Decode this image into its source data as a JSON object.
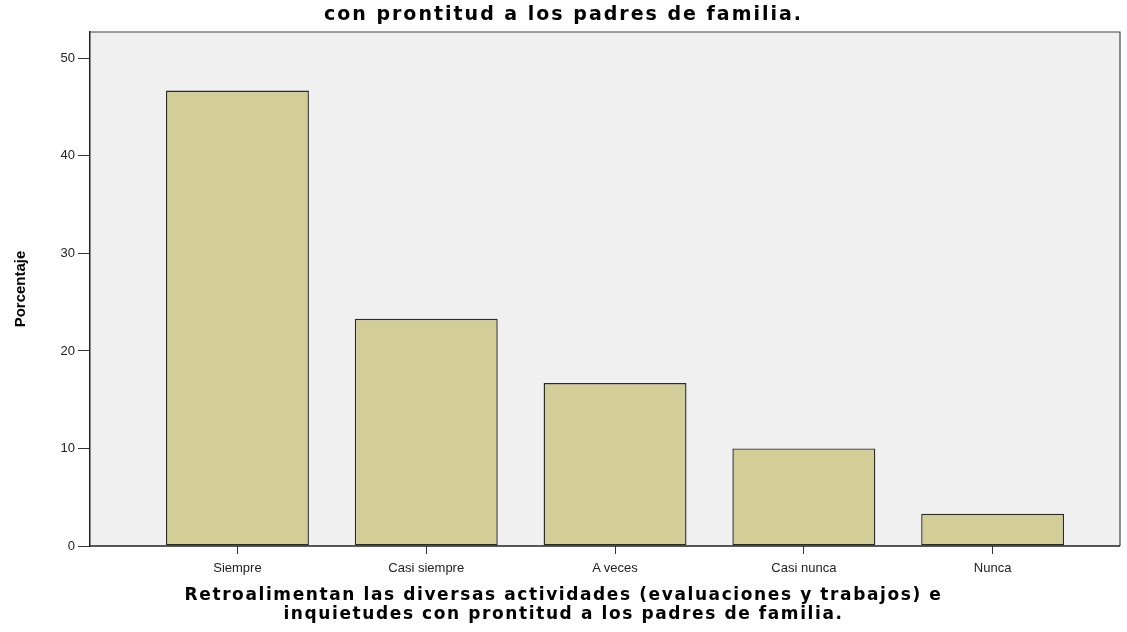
{
  "chart_data": {
    "type": "bar",
    "title": "con prontitud a los padres de familia.",
    "xlabel": "Retroalimentan las diversas actividades (evaluaciones y trabajos) e inquietudes con prontitud a los padres de familia.",
    "ylabel": "Porcentaje",
    "categories": [
      "Siempre",
      "Casi siempre",
      "A veces",
      "Casi nunca",
      "Nunca"
    ],
    "values": [
      46.7,
      23.3,
      16.7,
      10.0,
      3.3
    ],
    "color": "#d3cd97",
    "ylim": [
      0,
      52.7
    ],
    "yticks": [
      0,
      10,
      20,
      30,
      40,
      50
    ]
  }
}
